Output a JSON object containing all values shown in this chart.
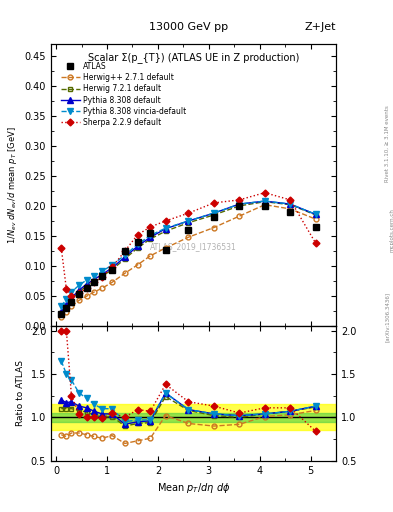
{
  "title_header": "13000 GeV pp",
  "title_right": "Z+Jet",
  "main_title": "Scalar Σ(p_{T}) (ATLAS UE in Z production)",
  "watermark": "ATLAS_2019_I1736531",
  "right_label1": "Rivet 3.1.10, ≥ 3.1M events",
  "right_label2": "mcplots.cern.ch",
  "arxiv_label": "[arXiv:1306.3436]",
  "ylabel_main": "1/N_{ev} dN_{ev}/d mean p_{T} [GeV]",
  "ylabel_ratio": "Ratio to ATLAS",
  "xlabel": "Mean p_{T}/dη dφ",
  "ylim_main": [
    0.0,
    0.47
  ],
  "ylim_ratio": [
    0.5,
    2.05
  ],
  "xlim": [
    -0.1,
    5.5
  ],
  "atlas_x": [
    0.1,
    0.2,
    0.3,
    0.45,
    0.6,
    0.75,
    0.9,
    1.1,
    1.35,
    1.6,
    1.85,
    2.15,
    2.6,
    3.1,
    3.6,
    4.1,
    4.6,
    5.1
  ],
  "atlas_y": [
    0.02,
    0.03,
    0.04,
    0.053,
    0.063,
    0.073,
    0.083,
    0.093,
    0.125,
    0.14,
    0.155,
    0.127,
    0.16,
    0.182,
    0.2,
    0.2,
    0.19,
    0.165
  ],
  "herwig271_x": [
    0.1,
    0.2,
    0.3,
    0.45,
    0.6,
    0.75,
    0.9,
    1.1,
    1.35,
    1.6,
    1.85,
    2.15,
    2.6,
    3.1,
    3.6,
    4.1,
    4.6,
    5.1
  ],
  "herwig271_y": [
    0.016,
    0.024,
    0.033,
    0.043,
    0.05,
    0.057,
    0.063,
    0.073,
    0.088,
    0.102,
    0.117,
    0.13,
    0.148,
    0.164,
    0.183,
    0.202,
    0.195,
    0.178
  ],
  "herwig721_x": [
    0.1,
    0.2,
    0.3,
    0.45,
    0.6,
    0.75,
    0.9,
    1.1,
    1.35,
    1.6,
    1.85,
    2.15,
    2.6,
    3.1,
    3.6,
    4.1,
    4.6,
    5.1
  ],
  "herwig721_y": [
    0.022,
    0.033,
    0.044,
    0.057,
    0.067,
    0.075,
    0.083,
    0.094,
    0.112,
    0.13,
    0.145,
    0.158,
    0.172,
    0.185,
    0.2,
    0.207,
    0.202,
    0.185
  ],
  "pythia8_x": [
    0.1,
    0.2,
    0.3,
    0.45,
    0.6,
    0.75,
    0.9,
    1.1,
    1.35,
    1.6,
    1.85,
    2.15,
    2.6,
    3.1,
    3.6,
    4.1,
    4.6,
    5.1
  ],
  "pythia8_y": [
    0.024,
    0.035,
    0.047,
    0.06,
    0.07,
    0.078,
    0.086,
    0.097,
    0.115,
    0.133,
    0.148,
    0.162,
    0.175,
    0.188,
    0.203,
    0.208,
    0.203,
    0.186
  ],
  "pythia8v_x": [
    0.1,
    0.2,
    0.3,
    0.45,
    0.6,
    0.75,
    0.9,
    1.1,
    1.35,
    1.6,
    1.85,
    2.15,
    2.6,
    3.1,
    3.6,
    4.1,
    4.6,
    5.1
  ],
  "pythia8v_y": [
    0.033,
    0.045,
    0.057,
    0.068,
    0.077,
    0.084,
    0.091,
    0.102,
    0.118,
    0.136,
    0.151,
    0.163,
    0.175,
    0.188,
    0.203,
    0.208,
    0.203,
    0.186
  ],
  "sherpa_x": [
    0.1,
    0.2,
    0.3,
    0.45,
    0.6,
    0.75,
    0.9,
    1.1,
    1.35,
    1.6,
    1.85,
    2.15,
    2.6,
    3.1,
    3.6,
    4.1,
    4.6,
    5.1
  ],
  "sherpa_y": [
    0.13,
    0.062,
    0.05,
    0.055,
    0.063,
    0.073,
    0.082,
    0.098,
    0.125,
    0.152,
    0.165,
    0.175,
    0.188,
    0.205,
    0.21,
    0.222,
    0.21,
    0.138
  ],
  "herwig271_ratio": [
    0.8,
    0.78,
    0.82,
    0.82,
    0.8,
    0.78,
    0.76,
    0.79,
    0.7,
    0.73,
    0.76,
    1.02,
    0.93,
    0.9,
    0.92,
    1.01,
    1.03,
    1.08
  ],
  "herwig721_ratio": [
    1.1,
    1.1,
    1.1,
    1.08,
    1.06,
    1.03,
    1.0,
    1.01,
    0.9,
    0.93,
    0.94,
    1.24,
    1.08,
    1.02,
    1.0,
    1.04,
    1.07,
    1.12
  ],
  "pythia8_ratio": [
    1.2,
    1.17,
    1.18,
    1.13,
    1.11,
    1.07,
    1.04,
    1.04,
    0.92,
    0.95,
    0.96,
    1.28,
    1.09,
    1.04,
    1.02,
    1.04,
    1.07,
    1.13
  ],
  "pythia8v_ratio": [
    1.65,
    1.5,
    1.43,
    1.28,
    1.22,
    1.15,
    1.1,
    1.1,
    0.95,
    0.97,
    0.97,
    1.28,
    1.09,
    1.04,
    1.02,
    1.04,
    1.07,
    1.13
  ],
  "sherpa_ratio": [
    2.0,
    2.0,
    1.25,
    1.04,
    1.0,
    1.0,
    0.99,
    1.05,
    1.0,
    1.09,
    1.07,
    1.38,
    1.18,
    1.13,
    1.05,
    1.11,
    1.11,
    0.84
  ],
  "sherpa_ratio_clipped_top": [
    true,
    true,
    false,
    false,
    false,
    false,
    false,
    false,
    false,
    false,
    false,
    false,
    false,
    false,
    false,
    false,
    false,
    false
  ],
  "green_band": [
    0.95,
    1.05
  ],
  "yellow_band": [
    0.85,
    1.15
  ],
  "color_atlas": "#000000",
  "color_herwig271": "#cc7722",
  "color_herwig721": "#556b00",
  "color_pythia8": "#0000cc",
  "color_pythia8v": "#008bcc",
  "color_sherpa": "#cc0000",
  "bg_color": "#ffffff"
}
